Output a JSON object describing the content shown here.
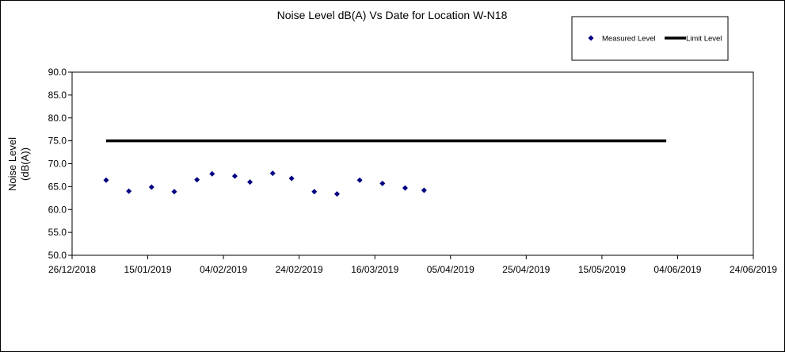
{
  "chart_data": {
    "type": "scatter",
    "title": "Noise Level dB(A) Vs Date for Location W-N18",
    "xlabel": "",
    "ylabel": [
      "Noise Level",
      "(dB(A))"
    ],
    "x_range": [
      "2018-12-26",
      "2019-06-24"
    ],
    "x_ticks": [
      "26/12/2018",
      "15/01/2019",
      "04/02/2019",
      "24/02/2019",
      "16/03/2019",
      "05/04/2019",
      "25/04/2019",
      "15/05/2019",
      "04/06/2019",
      "24/06/2019"
    ],
    "ylim": [
      50.0,
      90.0
    ],
    "y_ticks": [
      "90.0",
      "85.0",
      "80.0",
      "75.0",
      "70.0",
      "65.0",
      "60.0",
      "55.0",
      "50.0"
    ],
    "grid": false,
    "legend_position": "top-right",
    "series": [
      {
        "name": "Measured Level",
        "marker": "diamond",
        "color": "#000080",
        "points": [
          {
            "x": "2019-01-04",
            "y": 66.4
          },
          {
            "x": "2019-01-10",
            "y": 64.0
          },
          {
            "x": "2019-01-16",
            "y": 64.9
          },
          {
            "x": "2019-01-22",
            "y": 63.9
          },
          {
            "x": "2019-01-28",
            "y": 66.5
          },
          {
            "x": "2019-02-01",
            "y": 67.8
          },
          {
            "x": "2019-02-07",
            "y": 67.3
          },
          {
            "x": "2019-02-11",
            "y": 66.0
          },
          {
            "x": "2019-02-17",
            "y": 67.9
          },
          {
            "x": "2019-02-22",
            "y": 66.8
          },
          {
            "x": "2019-02-28",
            "y": 63.9
          },
          {
            "x": "2019-03-06",
            "y": 63.4
          },
          {
            "x": "2019-03-12",
            "y": 66.4
          },
          {
            "x": "2019-03-18",
            "y": 65.7
          },
          {
            "x": "2019-03-24",
            "y": 64.7
          },
          {
            "x": "2019-03-29",
            "y": 64.2
          }
        ]
      },
      {
        "name": "Limit Level",
        "style": "line",
        "color": "#000000",
        "points": [
          {
            "x": "2019-01-04",
            "y": 75.0
          },
          {
            "x": "2019-06-01",
            "y": 75.0
          }
        ]
      }
    ]
  }
}
